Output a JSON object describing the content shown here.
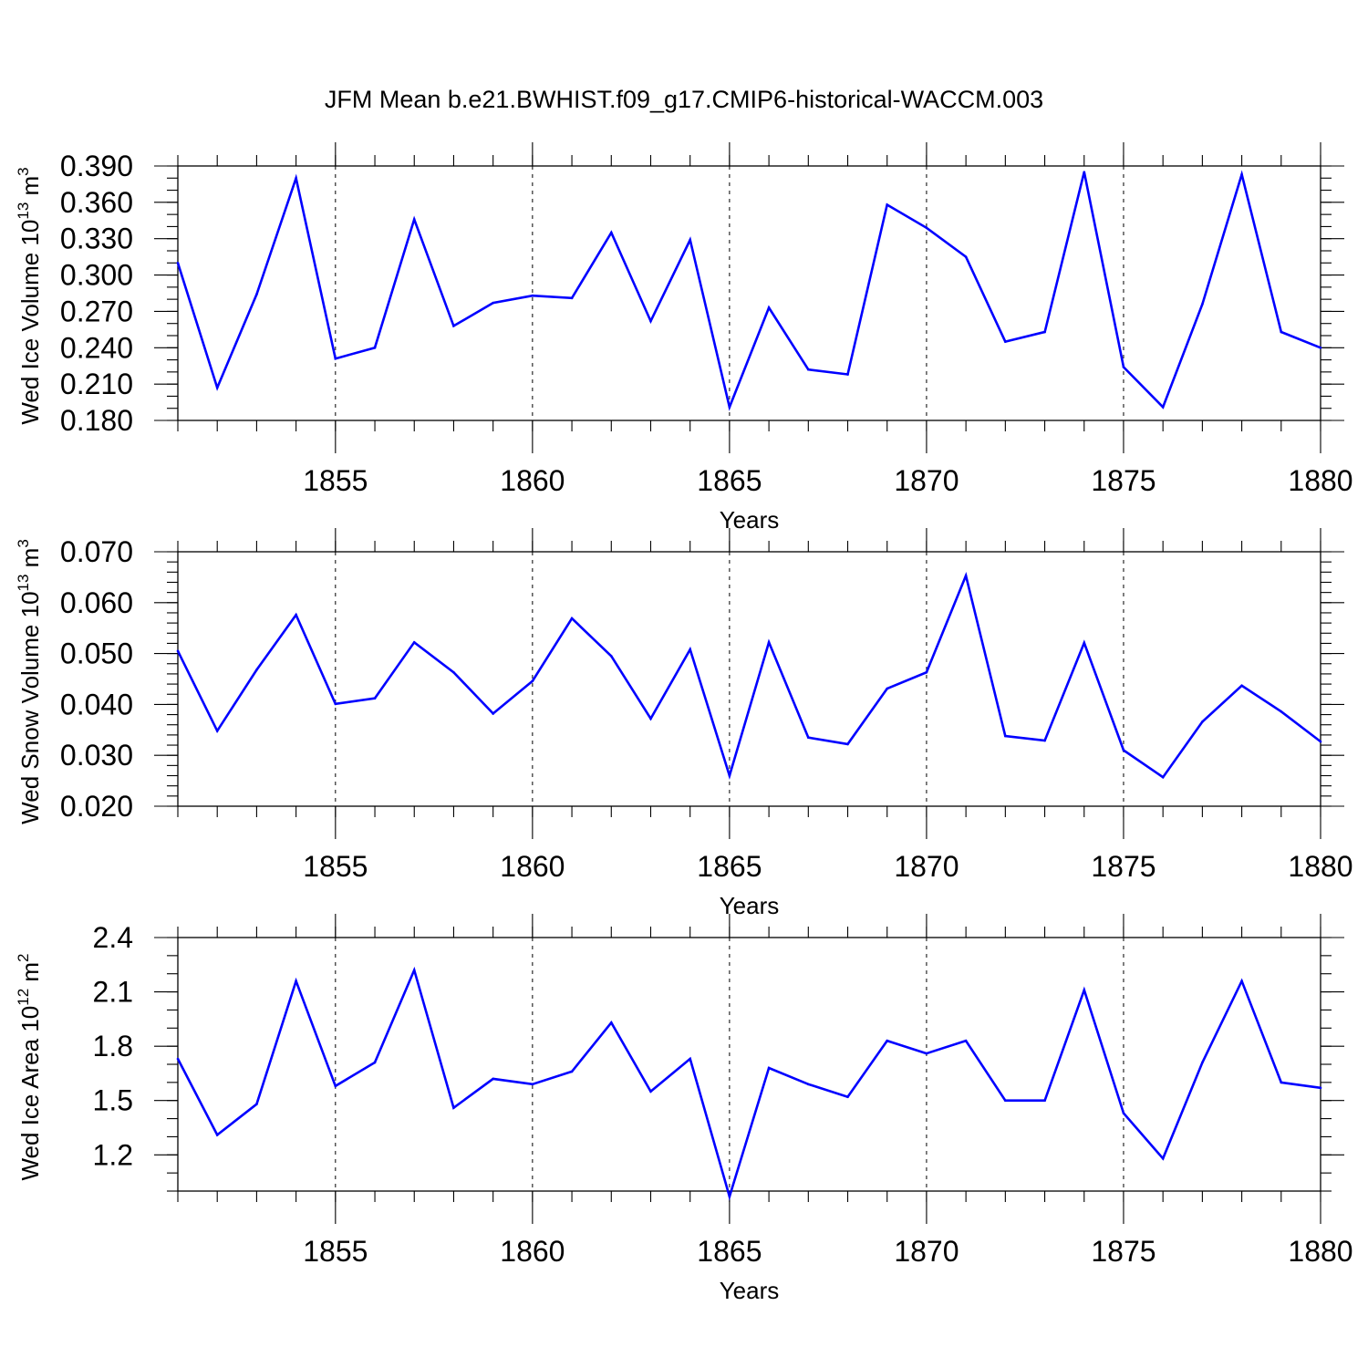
{
  "figure": {
    "title": "JFM Mean b.e21.BWHIST.f09_g17.CMIP6-historical-WACCM.003"
  },
  "colors": {
    "line": "#0000ff",
    "axis": "#000000",
    "background": "#ffffff"
  },
  "chart_data": [
    {
      "type": "line",
      "title": "JFM Mean b.e21.BWHIST.f09_g17.CMIP6-historical-WACCM.003",
      "ylabel": {
        "base": "Wed Ice Volume 10",
        "exp": "13",
        "unit": " m",
        "unit_exp": "3"
      },
      "xlabel": "Years",
      "xlim": [
        1851,
        1880
      ],
      "ylim": [
        0.18,
        0.39
      ],
      "yticks": [
        0.18,
        0.21,
        0.24,
        0.27,
        0.3,
        0.33,
        0.36,
        0.39
      ],
      "ytick_labels": [
        "0.180",
        "0.210",
        "0.240",
        "0.270",
        "0.300",
        "0.330",
        "0.360",
        "0.390"
      ],
      "yminor_step": 0.01,
      "xticks": [
        1855,
        1860,
        1865,
        1870,
        1875,
        1880
      ],
      "xtick_labels": [
        "1855",
        "1860",
        "1865",
        "1870",
        "1875",
        "1880"
      ],
      "grid_x": true,
      "x": [
        1851,
        1852,
        1853,
        1854,
        1855,
        1856,
        1857,
        1858,
        1859,
        1860,
        1861,
        1862,
        1863,
        1864,
        1865,
        1866,
        1867,
        1868,
        1869,
        1870,
        1871,
        1872,
        1873,
        1874,
        1875,
        1876,
        1877,
        1878,
        1879,
        1880
      ],
      "series": [
        {
          "name": "Wed Ice Volume",
          "values": [
            0.31,
            0.207,
            0.284,
            0.38,
            0.231,
            0.24,
            0.346,
            0.258,
            0.277,
            0.283,
            0.281,
            0.335,
            0.262,
            0.329,
            0.191,
            0.273,
            0.222,
            0.218,
            0.358,
            0.339,
            0.315,
            0.245,
            0.253,
            0.385,
            0.224,
            0.191,
            0.276,
            0.383,
            0.253,
            0.24
          ]
        }
      ]
    },
    {
      "type": "line",
      "ylabel": {
        "base": "Wed Snow Volume 10",
        "exp": "13",
        "unit": " m",
        "unit_exp": "3"
      },
      "xlabel": "Years",
      "xlim": [
        1851,
        1880
      ],
      "ylim": [
        0.02,
        0.07
      ],
      "yticks": [
        0.02,
        0.03,
        0.04,
        0.05,
        0.06,
        0.07
      ],
      "ytick_labels": [
        "0.020",
        "0.030",
        "0.040",
        "0.050",
        "0.060",
        "0.070"
      ],
      "yminor_step": 0.002,
      "xticks": [
        1855,
        1860,
        1865,
        1870,
        1875,
        1880
      ],
      "xtick_labels": [
        "1855",
        "1860",
        "1865",
        "1870",
        "1875",
        "1880"
      ],
      "grid_x": true,
      "x": [
        1851,
        1852,
        1853,
        1854,
        1855,
        1856,
        1857,
        1858,
        1859,
        1860,
        1861,
        1862,
        1863,
        1864,
        1865,
        1866,
        1867,
        1868,
        1869,
        1870,
        1871,
        1872,
        1873,
        1874,
        1875,
        1876,
        1877,
        1878,
        1879,
        1880
      ],
      "series": [
        {
          "name": "Wed Snow Volume",
          "values": [
            0.0505,
            0.0348,
            0.0468,
            0.0576,
            0.0401,
            0.0412,
            0.0522,
            0.0463,
            0.0382,
            0.0446,
            0.0569,
            0.0495,
            0.0372,
            0.0508,
            0.026,
            0.0522,
            0.0335,
            0.0322,
            0.0431,
            0.0463,
            0.0653,
            0.0338,
            0.0329,
            0.0521,
            0.031,
            0.0257,
            0.0366,
            0.0437,
            0.0386,
            0.0327
          ]
        }
      ]
    },
    {
      "type": "line",
      "ylabel": {
        "base": "Wed Ice Area 10",
        "exp": "12",
        "unit": " m",
        "unit_exp": "2"
      },
      "xlabel": "Years",
      "xlim": [
        1851,
        1880
      ],
      "ylim": [
        1.0,
        2.4
      ],
      "yticks": [
        1.2,
        1.5,
        1.8,
        2.1,
        2.4
      ],
      "ytick_labels": [
        "1.2",
        "1.5",
        "1.8",
        "2.1",
        "2.4"
      ],
      "yminor_step": 0.1,
      "xticks": [
        1855,
        1860,
        1865,
        1870,
        1875,
        1880
      ],
      "xtick_labels": [
        "1855",
        "1860",
        "1865",
        "1870",
        "1875",
        "1880"
      ],
      "grid_x": true,
      "x": [
        1851,
        1852,
        1853,
        1854,
        1855,
        1856,
        1857,
        1858,
        1859,
        1860,
        1861,
        1862,
        1863,
        1864,
        1865,
        1866,
        1867,
        1868,
        1869,
        1870,
        1871,
        1872,
        1873,
        1874,
        1875,
        1876,
        1877,
        1878,
        1879,
        1880
      ],
      "series": [
        {
          "name": "Wed Ice Area",
          "values": [
            1.73,
            1.31,
            1.48,
            2.16,
            1.58,
            1.71,
            2.22,
            1.46,
            1.62,
            1.59,
            1.66,
            1.93,
            1.55,
            1.73,
            0.97,
            1.68,
            1.59,
            1.52,
            1.83,
            1.76,
            1.83,
            1.5,
            1.5,
            2.11,
            1.43,
            1.18,
            1.71,
            2.16,
            1.6,
            1.57
          ]
        }
      ]
    }
  ]
}
